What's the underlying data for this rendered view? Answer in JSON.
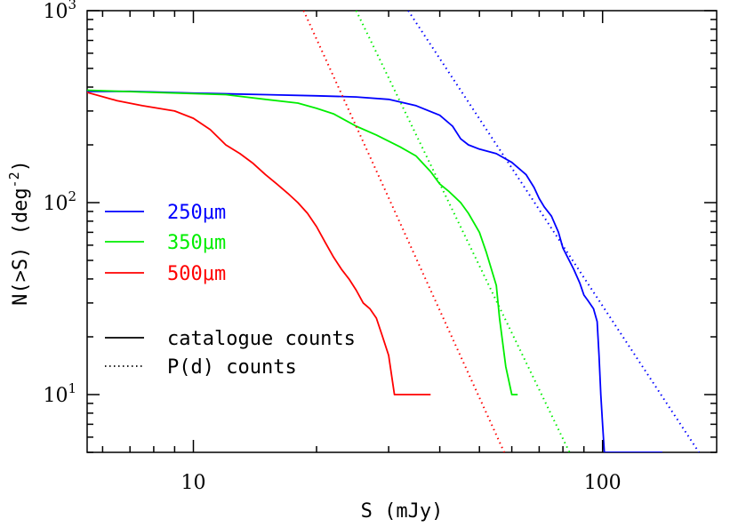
{
  "chart_data": {
    "type": "line",
    "xscale": "log",
    "yscale": "log",
    "xlim": [
      5.5,
      190
    ],
    "ylim": [
      5,
      1000
    ],
    "xlabel": "S (mJy)",
    "ylabel": {
      "main": "N(>S) (deg",
      "sup": "-2",
      "close": ")"
    },
    "xticks": [
      {
        "value": 10,
        "label": "10"
      },
      {
        "value": 100,
        "label": "100"
      }
    ],
    "yticks": [
      {
        "value": 10,
        "base": "10",
        "exp": "1"
      },
      {
        "value": 100,
        "base": "10",
        "exp": "2"
      },
      {
        "value": 1000,
        "base": "10",
        "exp": "3"
      }
    ],
    "grid": false,
    "legend": {
      "placement": "left",
      "bands": [
        {
          "label": "250μm",
          "color": "#0000ff"
        },
        {
          "label": "350μm",
          "color": "#00ee00"
        },
        {
          "label": "500μm",
          "color": "#ff0000"
        }
      ],
      "styles": [
        {
          "label": "catalogue counts",
          "dash": "solid"
        },
        {
          "label": "P(d) counts",
          "dash": "dotted"
        }
      ]
    },
    "series": [
      {
        "band": "250μm",
        "kind": "catalogue",
        "color": "#0000ff",
        "points": [
          [
            5.5,
            380
          ],
          [
            7,
            380
          ],
          [
            10,
            372
          ],
          [
            15,
            365
          ],
          [
            20,
            360
          ],
          [
            25,
            355
          ],
          [
            30,
            345
          ],
          [
            35,
            320
          ],
          [
            40,
            285
          ],
          [
            43,
            250
          ],
          [
            45,
            215
          ],
          [
            47,
            200
          ],
          [
            50,
            190
          ],
          [
            55,
            180
          ],
          [
            60,
            162
          ],
          [
            65,
            140
          ],
          [
            68,
            120
          ],
          [
            70,
            105
          ],
          [
            72,
            95
          ],
          [
            75,
            85
          ],
          [
            78,
            70
          ],
          [
            80,
            58
          ],
          [
            85,
            45
          ],
          [
            88,
            38
          ],
          [
            90,
            33
          ],
          [
            92,
            31
          ],
          [
            95,
            28
          ],
          [
            97,
            24
          ],
          [
            98,
            16
          ],
          [
            99,
            10
          ],
          [
            100,
            7
          ],
          [
            101,
            5
          ],
          [
            140,
            5
          ]
        ]
      },
      {
        "band": "350μm",
        "kind": "catalogue",
        "color": "#00ee00",
        "points": [
          [
            5.5,
            385
          ],
          [
            8,
            375
          ],
          [
            12,
            365
          ],
          [
            15,
            345
          ],
          [
            18,
            330
          ],
          [
            20,
            310
          ],
          [
            22,
            290
          ],
          [
            25,
            250
          ],
          [
            28,
            225
          ],
          [
            32,
            195
          ],
          [
            35,
            175
          ],
          [
            38,
            145
          ],
          [
            40,
            125
          ],
          [
            42,
            115
          ],
          [
            45,
            100
          ],
          [
            47,
            88
          ],
          [
            50,
            70
          ],
          [
            52,
            55
          ],
          [
            55,
            37
          ],
          [
            56,
            25
          ],
          [
            58,
            14
          ],
          [
            60,
            10
          ],
          [
            62,
            10
          ]
        ]
      },
      {
        "band": "500μm",
        "kind": "catalogue",
        "color": "#ff0000",
        "points": [
          [
            5.5,
            375
          ],
          [
            6.5,
            340
          ],
          [
            7.5,
            320
          ],
          [
            9,
            300
          ],
          [
            10,
            275
          ],
          [
            11,
            240
          ],
          [
            12,
            200
          ],
          [
            13,
            180
          ],
          [
            14,
            160
          ],
          [
            15,
            140
          ],
          [
            16,
            125
          ],
          [
            17,
            112
          ],
          [
            18,
            100
          ],
          [
            19,
            88
          ],
          [
            20,
            75
          ],
          [
            21,
            62
          ],
          [
            22,
            52
          ],
          [
            23,
            45
          ],
          [
            24,
            40
          ],
          [
            25,
            35
          ],
          [
            26,
            30
          ],
          [
            27,
            28
          ],
          [
            28,
            25
          ],
          [
            29,
            20
          ],
          [
            30,
            16
          ],
          [
            31,
            10
          ],
          [
            38,
            10
          ]
        ]
      },
      {
        "band": "250μm",
        "kind": "pd",
        "color": "#0000ff",
        "points": [
          [
            33.5,
            1000
          ],
          [
            172,
            5
          ]
        ]
      },
      {
        "band": "350μm",
        "kind": "pd",
        "color": "#00ee00",
        "points": [
          [
            25,
            1000
          ],
          [
            83,
            5
          ]
        ]
      },
      {
        "band": "500μm",
        "kind": "pd",
        "color": "#ff0000",
        "points": [
          [
            18.6,
            1000
          ],
          [
            57.5,
            5
          ]
        ]
      }
    ]
  }
}
